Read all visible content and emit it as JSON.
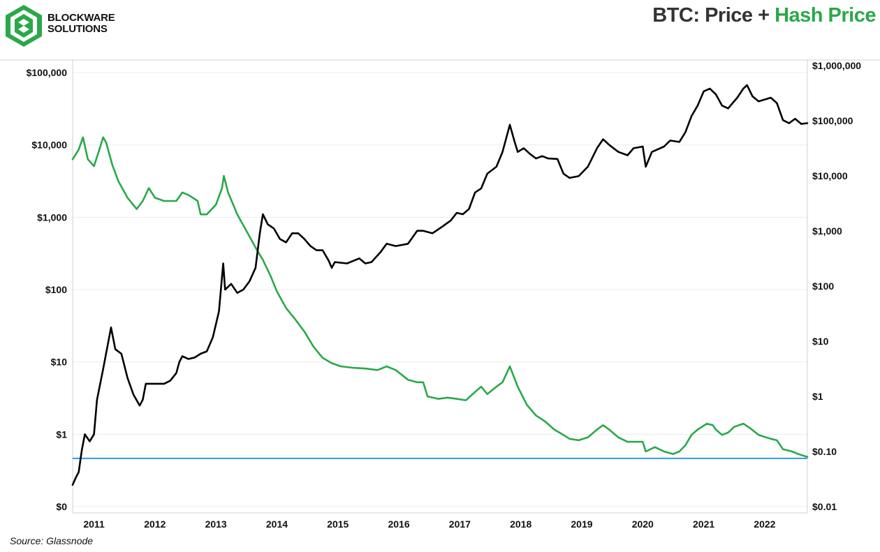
{
  "header": {
    "logo_icon": "blockware-logo-icon",
    "brand_line1": "BLOCKWARE",
    "brand_line2": "SOLUTIONS",
    "title_main": "BTC: Price",
    "title_plus": "+",
    "title_green": "Hash Price",
    "title_green_color": "#2aa84a"
  },
  "chart_data": {
    "type": "line",
    "title": "BTC: Price + Hash Price",
    "x_ticks": [
      "2011",
      "2012",
      "2013",
      "2014",
      "2015",
      "2016",
      "2017",
      "2018",
      "2019",
      "2020",
      "2021",
      "2022"
    ],
    "xlim": [
      2010.8,
      2022.85
    ],
    "left_axis": {
      "scale": "log",
      "ylim": [
        0.1,
        100000
      ],
      "tick_values": [
        0.1,
        1,
        10,
        100,
        1000,
        10000,
        100000
      ],
      "tick_labels": [
        "$0",
        "$1",
        "$10",
        "$100",
        "$1,000",
        "$10,000",
        "$100,000"
      ]
    },
    "right_axis": {
      "scale": "log",
      "ylim": [
        0.01,
        1000000
      ],
      "tick_values": [
        0.01,
        0.1,
        1,
        10,
        100,
        1000,
        10000,
        100000,
        1000000
      ],
      "tick_labels": [
        "$0.01",
        "$0.10",
        "$1",
        "$10",
        "$100",
        "$1,000",
        "$10,000",
        "$100,000",
        "$1,000,000"
      ]
    },
    "series": [
      {
        "name": "BTC Price",
        "axis": "left",
        "color": "#000000",
        "points": [
          [
            2010.8,
            0.2
          ],
          [
            2010.85,
            0.25
          ],
          [
            2010.9,
            0.3
          ],
          [
            2010.95,
            0.6
          ],
          [
            2011.0,
            1.0
          ],
          [
            2011.08,
            0.8
          ],
          [
            2011.15,
            1.0
          ],
          [
            2011.2,
            3.0
          ],
          [
            2011.3,
            8.0
          ],
          [
            2011.43,
            30.0
          ],
          [
            2011.5,
            15.0
          ],
          [
            2011.6,
            13.0
          ],
          [
            2011.7,
            6.0
          ],
          [
            2011.8,
            3.5
          ],
          [
            2011.9,
            2.5
          ],
          [
            2011.95,
            3.0
          ],
          [
            2012.0,
            5.0
          ],
          [
            2012.1,
            5.0
          ],
          [
            2012.2,
            5.0
          ],
          [
            2012.3,
            5.0
          ],
          [
            2012.4,
            5.5
          ],
          [
            2012.5,
            7.0
          ],
          [
            2012.55,
            10.0
          ],
          [
            2012.6,
            12.0
          ],
          [
            2012.7,
            11.0
          ],
          [
            2012.8,
            11.5
          ],
          [
            2012.9,
            13.0
          ],
          [
            2013.0,
            14.0
          ],
          [
            2013.1,
            22.0
          ],
          [
            2013.2,
            50.0
          ],
          [
            2013.27,
            230.0
          ],
          [
            2013.3,
            100.0
          ],
          [
            2013.4,
            120.0
          ],
          [
            2013.5,
            90.0
          ],
          [
            2013.6,
            100.0
          ],
          [
            2013.7,
            130.0
          ],
          [
            2013.8,
            200.0
          ],
          [
            2013.87,
            600.0
          ],
          [
            2013.92,
            1100.0
          ],
          [
            2014.0,
            800.0
          ],
          [
            2014.1,
            700.0
          ],
          [
            2014.2,
            500.0
          ],
          [
            2014.3,
            450.0
          ],
          [
            2014.4,
            600.0
          ],
          [
            2014.5,
            600.0
          ],
          [
            2014.6,
            500.0
          ],
          [
            2014.7,
            400.0
          ],
          [
            2014.8,
            350.0
          ],
          [
            2014.9,
            350.0
          ],
          [
            2015.0,
            250.0
          ],
          [
            2015.05,
            200.0
          ],
          [
            2015.1,
            240.0
          ],
          [
            2015.3,
            230.0
          ],
          [
            2015.5,
            270.0
          ],
          [
            2015.6,
            230.0
          ],
          [
            2015.7,
            240.0
          ],
          [
            2015.85,
            330.0
          ],
          [
            2015.95,
            430.0
          ],
          [
            2016.1,
            400.0
          ],
          [
            2016.3,
            430.0
          ],
          [
            2016.45,
            650.0
          ],
          [
            2016.55,
            650.0
          ],
          [
            2016.7,
            600.0
          ],
          [
            2016.85,
            730.0
          ],
          [
            2017.0,
            900.0
          ],
          [
            2017.1,
            1150.0
          ],
          [
            2017.2,
            1100.0
          ],
          [
            2017.3,
            1300.0
          ],
          [
            2017.4,
            2200.0
          ],
          [
            2017.5,
            2500.0
          ],
          [
            2017.6,
            4000.0
          ],
          [
            2017.75,
            5000.0
          ],
          [
            2017.85,
            8000.0
          ],
          [
            2017.97,
            19000.0
          ],
          [
            2018.05,
            11000.0
          ],
          [
            2018.1,
            8000.0
          ],
          [
            2018.2,
            9000.0
          ],
          [
            2018.3,
            7500.0
          ],
          [
            2018.4,
            6500.0
          ],
          [
            2018.5,
            7000.0
          ],
          [
            2018.6,
            6500.0
          ],
          [
            2018.75,
            6400.0
          ],
          [
            2018.85,
            4000.0
          ],
          [
            2018.95,
            3500.0
          ],
          [
            2019.1,
            3700.0
          ],
          [
            2019.25,
            5000.0
          ],
          [
            2019.4,
            9000.0
          ],
          [
            2019.5,
            12000.0
          ],
          [
            2019.6,
            10000.0
          ],
          [
            2019.75,
            8000.0
          ],
          [
            2019.9,
            7200.0
          ],
          [
            2020.0,
            9000.0
          ],
          [
            2020.15,
            9500.0
          ],
          [
            2020.2,
            5000.0
          ],
          [
            2020.3,
            8000.0
          ],
          [
            2020.5,
            9500.0
          ],
          [
            2020.6,
            11500.0
          ],
          [
            2020.75,
            11000.0
          ],
          [
            2020.85,
            15000.0
          ],
          [
            2020.95,
            25000.0
          ],
          [
            2021.05,
            35000.0
          ],
          [
            2021.15,
            55000.0
          ],
          [
            2021.25,
            60000.0
          ],
          [
            2021.35,
            50000.0
          ],
          [
            2021.45,
            35000.0
          ],
          [
            2021.55,
            32000.0
          ],
          [
            2021.7,
            45000.0
          ],
          [
            2021.8,
            60000.0
          ],
          [
            2021.86,
            67000.0
          ],
          [
            2021.95,
            47000.0
          ],
          [
            2022.05,
            40000.0
          ],
          [
            2022.25,
            45000.0
          ],
          [
            2022.35,
            38000.0
          ],
          [
            2022.45,
            22000.0
          ],
          [
            2022.55,
            20000.0
          ],
          [
            2022.65,
            23000.0
          ],
          [
            2022.75,
            19500.0
          ],
          [
            2022.85,
            20000.0
          ]
        ]
      },
      {
        "name": "Hash Price",
        "axis": "right",
        "color": "#2aa84a",
        "points": [
          [
            2010.8,
            20000.0
          ],
          [
            2010.9,
            30000.0
          ],
          [
            2010.97,
            50000.0
          ],
          [
            2011.05,
            20000.0
          ],
          [
            2011.15,
            15000.0
          ],
          [
            2011.23,
            28000.0
          ],
          [
            2011.3,
            50000.0
          ],
          [
            2011.35,
            40000.0
          ],
          [
            2011.45,
            16000.0
          ],
          [
            2011.55,
            8000.0
          ],
          [
            2011.7,
            4000.0
          ],
          [
            2011.85,
            2500.0
          ],
          [
            2011.95,
            3500.0
          ],
          [
            2012.05,
            6000.0
          ],
          [
            2012.15,
            4000.0
          ],
          [
            2012.3,
            3500.0
          ],
          [
            2012.5,
            3500.0
          ],
          [
            2012.6,
            5000.0
          ],
          [
            2012.7,
            4500.0
          ],
          [
            2012.85,
            3500.0
          ],
          [
            2012.9,
            2000.0
          ],
          [
            2013.0,
            2000.0
          ],
          [
            2013.15,
            3000.0
          ],
          [
            2013.25,
            6000.0
          ],
          [
            2013.28,
            10000.0
          ],
          [
            2013.35,
            5000.0
          ],
          [
            2013.5,
            2000.0
          ],
          [
            2013.7,
            800.0
          ],
          [
            2013.8,
            500.0
          ],
          [
            2013.92,
            300.0
          ],
          [
            2014.05,
            150.0
          ],
          [
            2014.15,
            80.0
          ],
          [
            2014.3,
            40.0
          ],
          [
            2014.45,
            25.0
          ],
          [
            2014.6,
            15.0
          ],
          [
            2014.75,
            8.0
          ],
          [
            2014.9,
            5.0
          ],
          [
            2015.05,
            4.0
          ],
          [
            2015.2,
            3.5
          ],
          [
            2015.4,
            3.3
          ],
          [
            2015.6,
            3.2
          ],
          [
            2015.8,
            3.0
          ],
          [
            2015.95,
            3.5
          ],
          [
            2016.1,
            3.0
          ],
          [
            2016.3,
            2.0
          ],
          [
            2016.45,
            1.8
          ],
          [
            2016.55,
            1.8
          ],
          [
            2016.62,
            1.0
          ],
          [
            2016.8,
            0.9
          ],
          [
            2016.95,
            0.95
          ],
          [
            2017.1,
            0.9
          ],
          [
            2017.25,
            0.85
          ],
          [
            2017.4,
            1.2
          ],
          [
            2017.5,
            1.5
          ],
          [
            2017.6,
            1.1
          ],
          [
            2017.75,
            1.5
          ],
          [
            2017.85,
            1.8
          ],
          [
            2017.97,
            3.5
          ],
          [
            2018.1,
            1.5
          ],
          [
            2018.25,
            0.7
          ],
          [
            2018.4,
            0.45
          ],
          [
            2018.55,
            0.35
          ],
          [
            2018.7,
            0.25
          ],
          [
            2018.85,
            0.2
          ],
          [
            2018.95,
            0.17
          ],
          [
            2019.1,
            0.16
          ],
          [
            2019.25,
            0.18
          ],
          [
            2019.4,
            0.25
          ],
          [
            2019.5,
            0.3
          ],
          [
            2019.6,
            0.25
          ],
          [
            2019.75,
            0.18
          ],
          [
            2019.9,
            0.15
          ],
          [
            2020.0,
            0.15
          ],
          [
            2020.15,
            0.15
          ],
          [
            2020.2,
            0.1
          ],
          [
            2020.35,
            0.12
          ],
          [
            2020.5,
            0.1
          ],
          [
            2020.65,
            0.09
          ],
          [
            2020.75,
            0.1
          ],
          [
            2020.85,
            0.13
          ],
          [
            2020.95,
            0.2
          ],
          [
            2021.05,
            0.25
          ],
          [
            2021.2,
            0.32
          ],
          [
            2021.3,
            0.3
          ],
          [
            2021.35,
            0.25
          ],
          [
            2021.45,
            0.2
          ],
          [
            2021.55,
            0.22
          ],
          [
            2021.65,
            0.28
          ],
          [
            2021.8,
            0.32
          ],
          [
            2021.9,
            0.27
          ],
          [
            2022.05,
            0.2
          ],
          [
            2022.25,
            0.17
          ],
          [
            2022.35,
            0.16
          ],
          [
            2022.45,
            0.11
          ],
          [
            2022.6,
            0.1
          ],
          [
            2022.7,
            0.09
          ],
          [
            2022.85,
            0.08
          ]
        ]
      }
    ],
    "reference_line": {
      "name": "Hash Price floor",
      "axis": "right",
      "value": 0.075,
      "color": "#2f9be0"
    },
    "source": "Source: Glassnode"
  }
}
